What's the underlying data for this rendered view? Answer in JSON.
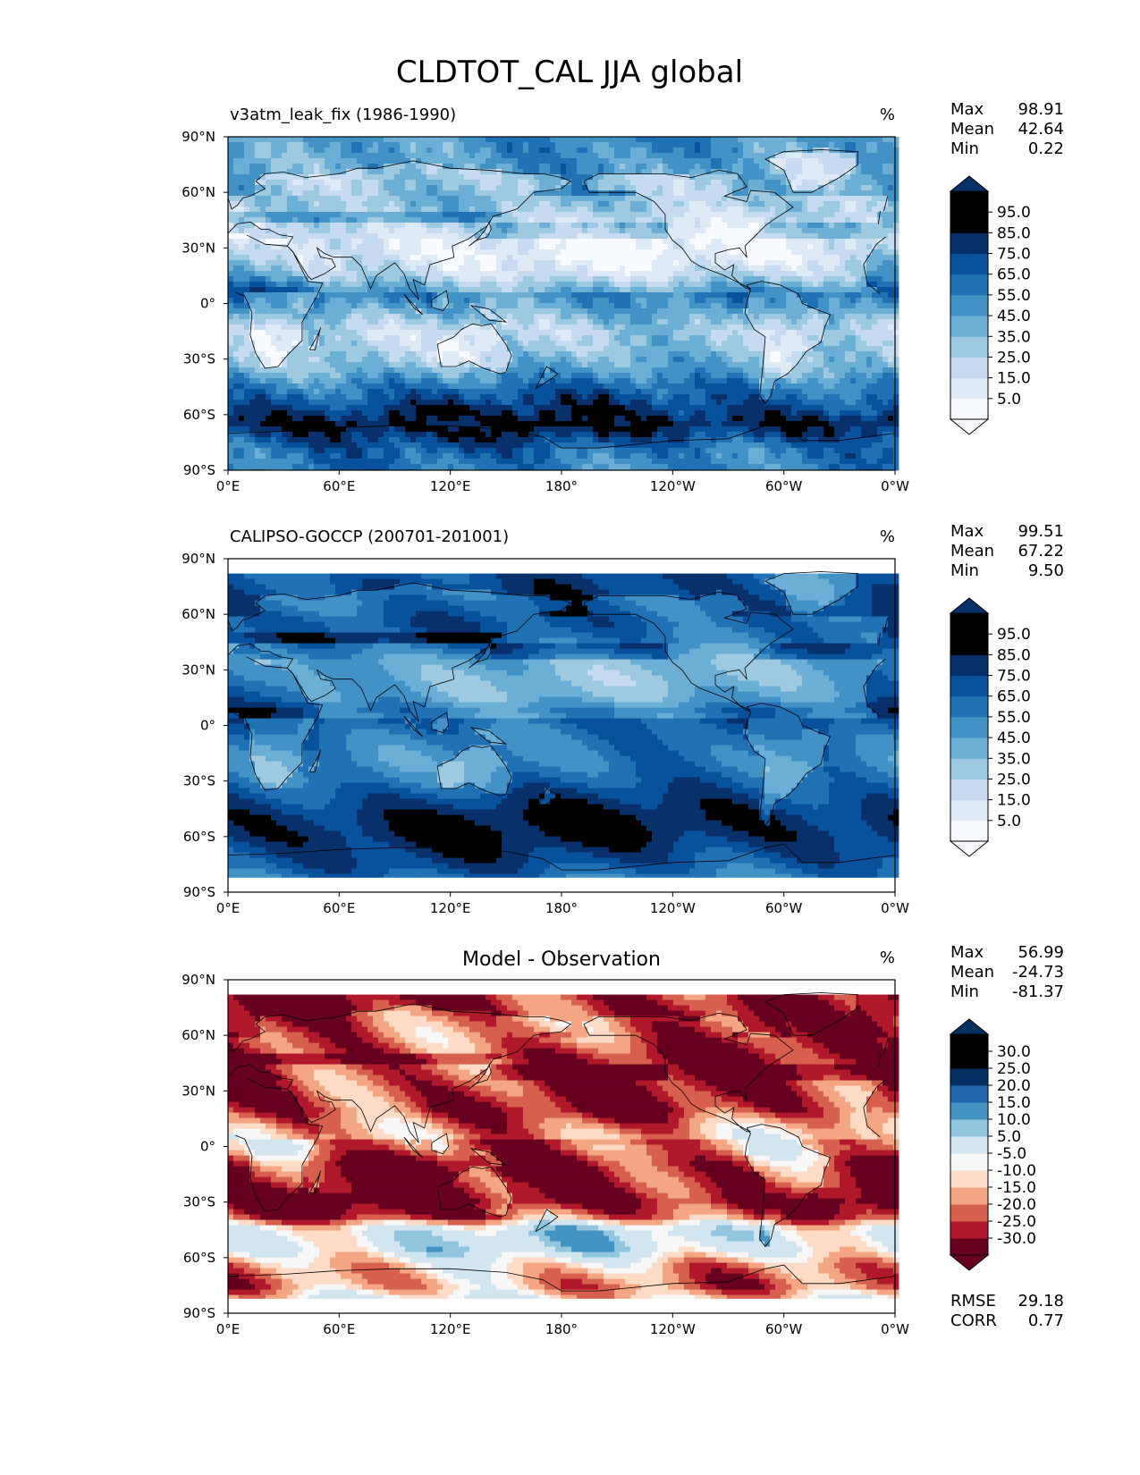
{
  "title": "CLDTOT_CAL JJA global",
  "colors": {
    "blues": [
      "#f7fbff",
      "#deebf7",
      "#c6dbef",
      "#9ecae1",
      "#6baed6",
      "#4292c6",
      "#2171b5",
      "#08519c",
      "#08306b"
    ],
    "rdbu": [
      "#67001f",
      "#b2182b",
      "#d6604d",
      "#f4a582",
      "#fddbc7",
      "#f7f7f7",
      "#d1e5f0",
      "#92c5de",
      "#4393c3",
      "#2166ac",
      "#053061"
    ]
  },
  "chart_data": [
    {
      "type": "heatmap",
      "id": "model",
      "left_title": "v3atm_leak_fix (1986-1990)",
      "center_title": "",
      "units": "%",
      "xticks": [
        "0°E",
        "60°E",
        "120°E",
        "180°",
        "120°W",
        "60°W",
        "0°W"
      ],
      "yticks": [
        "90°N",
        "60°N",
        "30°N",
        "0°",
        "30°S",
        "60°S",
        "90°S"
      ],
      "xlim": [
        0,
        360
      ],
      "ylim": [
        -90,
        90
      ],
      "lat_range": [
        -90,
        90
      ],
      "stats": [
        {
          "label": "Max",
          "value": "98.91"
        },
        {
          "label": "Mean",
          "value": "42.64"
        },
        {
          "label": "Min",
          "value": "0.22"
        }
      ],
      "colorbar": {
        "ticks": [
          "95.0",
          "85.0",
          "75.0",
          "65.0",
          "55.0",
          "45.0",
          "35.0",
          "25.0",
          "15.0",
          "5.0"
        ],
        "levels": [
          0,
          5,
          15,
          25,
          35,
          45,
          55,
          65,
          75,
          85,
          95,
          100
        ],
        "extend": "both"
      },
      "zonal_profile": [
        [
          -90,
          55
        ],
        [
          -80,
          60
        ],
        [
          -65,
          90
        ],
        [
          -55,
          75
        ],
        [
          -45,
          60
        ],
        [
          -35,
          40
        ],
        [
          -25,
          30
        ],
        [
          -15,
          25
        ],
        [
          0,
          50
        ],
        [
          8,
          60
        ],
        [
          15,
          38
        ],
        [
          25,
          25
        ],
        [
          35,
          25
        ],
        [
          45,
          40
        ],
        [
          55,
          50
        ],
        [
          65,
          45
        ],
        [
          75,
          45
        ],
        [
          90,
          50
        ]
      ]
    },
    {
      "type": "heatmap",
      "id": "obs",
      "left_title": "CALIPSO-GOCCP (200701-201001)",
      "center_title": "",
      "units": "%",
      "xticks": [
        "0°E",
        "60°E",
        "120°E",
        "180°",
        "120°W",
        "60°W",
        "0°W"
      ],
      "yticks": [
        "90°N",
        "60°N",
        "30°N",
        "0°",
        "30°S",
        "60°S",
        "90°S"
      ],
      "xlim": [
        0,
        360
      ],
      "ylim": [
        -90,
        90
      ],
      "lat_range": [
        -82,
        82
      ],
      "stats": [
        {
          "label": "Max",
          "value": "99.51"
        },
        {
          "label": "Mean",
          "value": "67.22"
        },
        {
          "label": "Min",
          "value": "9.50"
        }
      ],
      "colorbar": {
        "ticks": [
          "95.0",
          "85.0",
          "75.0",
          "65.0",
          "55.0",
          "45.0",
          "35.0",
          "25.0",
          "15.0",
          "5.0"
        ],
        "levels": [
          0,
          5,
          15,
          25,
          35,
          45,
          55,
          65,
          75,
          85,
          95,
          100
        ],
        "extend": "both"
      },
      "zonal_profile": [
        [
          -82,
          60
        ],
        [
          -75,
          70
        ],
        [
          -60,
          85
        ],
        [
          -50,
          85
        ],
        [
          -40,
          75
        ],
        [
          -30,
          62
        ],
        [
          -20,
          55
        ],
        [
          -10,
          58
        ],
        [
          0,
          65
        ],
        [
          8,
          75
        ],
        [
          15,
          60
        ],
        [
          25,
          55
        ],
        [
          35,
          58
        ],
        [
          45,
          78
        ],
        [
          55,
          85
        ],
        [
          65,
          78
        ],
        [
          75,
          72
        ],
        [
          82,
          70
        ]
      ]
    },
    {
      "type": "heatmap",
      "id": "diff",
      "left_title": "",
      "center_title": "Model - Observation",
      "units": "%",
      "xticks": [
        "0°E",
        "60°E",
        "120°E",
        "180°",
        "120°W",
        "60°W",
        "0°W"
      ],
      "yticks": [
        "90°N",
        "60°N",
        "30°N",
        "0°",
        "30°S",
        "60°S",
        "90°S"
      ],
      "xlim": [
        0,
        360
      ],
      "ylim": [
        -90,
        90
      ],
      "lat_range": [
        -82,
        82
      ],
      "stats": [
        {
          "label": "Max",
          "value": "56.99"
        },
        {
          "label": "Mean",
          "value": "-24.73"
        },
        {
          "label": "Min",
          "value": "-81.37"
        }
      ],
      "colorbar": {
        "ticks": [
          "30.0",
          "25.0",
          "20.0",
          "15.0",
          "10.0",
          "5.0",
          "-5.0",
          "-10.0",
          "-15.0",
          "-20.0",
          "-25.0",
          "-30.0"
        ],
        "levels": [
          -35,
          -30,
          -25,
          -20,
          -15,
          -10,
          -5,
          5,
          10,
          15,
          20,
          25,
          30,
          35
        ],
        "extend": "both"
      },
      "bottom_stats": [
        {
          "label": "RMSE",
          "value": "29.18"
        },
        {
          "label": "CORR",
          "value": "0.77"
        }
      ],
      "zonal_profile": [
        [
          -82,
          -10
        ],
        [
          -75,
          -20
        ],
        [
          -65,
          -15
        ],
        [
          -55,
          0
        ],
        [
          -45,
          0
        ],
        [
          -38,
          -25
        ],
        [
          -30,
          -35
        ],
        [
          -20,
          -32
        ],
        [
          -10,
          -30
        ],
        [
          0,
          -20
        ],
        [
          10,
          -25
        ],
        [
          20,
          -35
        ],
        [
          30,
          -35
        ],
        [
          40,
          -35
        ],
        [
          50,
          -35
        ],
        [
          60,
          -30
        ],
        [
          70,
          -30
        ],
        [
          82,
          -30
        ]
      ]
    }
  ]
}
